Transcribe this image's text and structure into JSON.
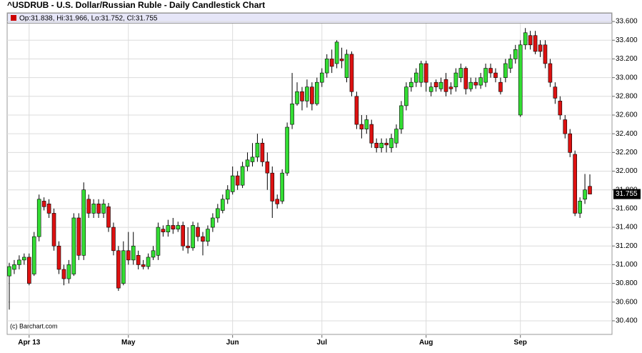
{
  "chart_data": {
    "type": "candlestick",
    "title": "^USDRUB - U.S. Dollar/Russian Ruble - Daily Candlestick Chart",
    "legend_text": "Op:31.838, Hi:31.966, Lo:31.752, Cl:31.755",
    "last_price_label": "31.755",
    "source": "(c) Barchart.com",
    "up_color": "#33dd33",
    "down_color": "#dd1111",
    "legend_color": "#cc0000",
    "grid": true,
    "categories": [
      null,
      null,
      null,
      null,
      "Apr 13",
      null,
      null,
      null,
      null,
      null,
      null,
      null,
      null,
      null,
      null,
      null,
      null,
      null,
      null,
      null,
      null,
      null,
      null,
      null,
      "May",
      null,
      null,
      null,
      null,
      null,
      null,
      null,
      null,
      null,
      null,
      null,
      null,
      null,
      null,
      null,
      null,
      null,
      null,
      null,
      null,
      "Jun",
      null,
      null,
      null,
      null,
      null,
      null,
      null,
      null,
      null,
      null,
      null,
      null,
      null,
      null,
      null,
      null,
      null,
      "Jul",
      null,
      null,
      null,
      null,
      null,
      null,
      null,
      null,
      null,
      null,
      null,
      null,
      null,
      null,
      null,
      null,
      null,
      null,
      null,
      null,
      "Aug",
      null,
      null,
      null,
      null,
      null,
      null,
      null,
      null,
      null,
      null,
      null,
      null,
      null,
      null,
      null,
      null,
      null,
      null,
      "Sep",
      null,
      null,
      null,
      null,
      null,
      null,
      null,
      null,
      null,
      null,
      null,
      null,
      null,
      null
    ],
    "open": [
      30.88,
      30.95,
      31.0,
      31.05,
      31.08,
      30.9,
      31.3,
      31.68,
      31.65,
      31.55,
      31.2,
      30.95,
      30.85,
      30.9,
      31.5,
      31.1,
      31.7,
      31.55,
      31.65,
      31.55,
      31.62,
      31.4,
      31.15,
      30.8,
      31.15,
      31.05,
      31.1,
      31.0,
      30.98,
      31.08,
      31.1,
      31.38,
      31.35,
      31.42,
      31.38,
      31.42,
      31.2,
      31.18,
      31.4,
      31.3,
      31.25,
      31.4,
      31.5,
      31.58,
      31.7,
      31.78,
      31.95,
      31.85,
      32.05,
      32.1,
      32.15,
      32.3,
      32.1,
      31.98,
      31.7,
      31.68,
      31.98,
      32.5,
      32.72,
      32.85,
      32.75,
      32.9,
      32.72,
      32.95,
      33.05,
      33.2,
      33.15,
      33.2,
      33.0,
      33.25,
      32.8,
      32.5,
      32.45,
      32.5,
      32.3,
      32.25,
      32.3,
      32.25,
      32.3,
      32.45,
      32.7,
      32.9,
      32.95,
      32.95,
      33.15,
      32.85,
      32.95,
      32.88,
      32.98,
      32.9,
      32.9,
      33.0,
      33.1,
      32.88,
      32.95,
      32.92,
      32.95,
      33.1,
      33.05,
      32.95,
      33.0,
      33.1,
      33.2,
      32.6,
      33.35,
      33.45,
      33.45,
      33.35,
      33.35,
      33.15,
      32.9,
      32.75,
      32.55,
      32.4,
      32.18,
      31.55,
      31.7,
      31.838
    ],
    "high": [
      31.02,
      31.05,
      31.1,
      31.12,
      31.12,
      31.35,
      31.75,
      31.72,
      31.7,
      31.6,
      31.25,
      31.0,
      31.05,
      31.55,
      31.55,
      31.88,
      31.75,
      31.7,
      31.7,
      31.7,
      31.66,
      31.45,
      31.2,
      31.25,
      31.35,
      31.35,
      31.15,
      31.05,
      31.12,
      31.2,
      31.45,
      31.42,
      31.48,
      31.5,
      31.46,
      31.46,
      31.4,
      31.46,
      31.45,
      31.35,
      31.42,
      31.55,
      31.65,
      31.75,
      31.85,
      32.05,
      32.0,
      32.1,
      32.2,
      32.3,
      32.4,
      32.35,
      32.2,
      32.05,
      31.75,
      32.02,
      32.52,
      33.05,
      32.95,
      32.9,
      32.98,
      32.95,
      33.0,
      33.1,
      33.25,
      33.3,
      33.4,
      33.32,
      33.3,
      33.28,
      32.85,
      32.6,
      32.6,
      32.55,
      32.35,
      32.35,
      32.35,
      32.4,
      32.5,
      32.75,
      32.95,
      33.0,
      33.1,
      33.18,
      33.18,
      32.95,
      32.98,
      33.0,
      33.05,
      32.95,
      33.1,
      33.15,
      33.12,
      33.0,
      33.0,
      33.05,
      33.15,
      33.15,
      33.1,
      33.0,
      33.2,
      33.25,
      33.35,
      33.4,
      33.53,
      33.5,
      33.5,
      33.4,
      33.4,
      33.2,
      32.95,
      32.8,
      32.6,
      32.45,
      32.22,
      31.72,
      31.97,
      31.966
    ],
    "low": [
      30.52,
      30.9,
      30.95,
      31.0,
      30.78,
      30.88,
      31.25,
      31.58,
      31.5,
      31.15,
      30.9,
      30.78,
      30.8,
      30.88,
      31.05,
      31.05,
      31.5,
      31.5,
      31.5,
      31.5,
      31.35,
      31.1,
      30.72,
      30.78,
      31.0,
      31.0,
      30.95,
      30.95,
      30.95,
      31.05,
      31.05,
      31.3,
      31.3,
      31.33,
      31.35,
      31.15,
      31.12,
      31.15,
      31.25,
      31.1,
      31.2,
      31.35,
      31.45,
      31.55,
      31.65,
      31.75,
      31.8,
      31.82,
      32.0,
      32.05,
      32.1,
      32.05,
      31.8,
      31.5,
      31.6,
      31.65,
      31.95,
      32.45,
      32.7,
      32.65,
      32.68,
      32.65,
      32.7,
      32.9,
      33.0,
      33.05,
      33.1,
      33.1,
      32.95,
      32.8,
      32.45,
      32.35,
      32.4,
      32.25,
      32.2,
      32.2,
      32.2,
      32.2,
      32.25,
      32.4,
      32.65,
      32.85,
      32.9,
      32.9,
      32.85,
      32.8,
      32.85,
      32.85,
      32.8,
      32.82,
      32.85,
      32.95,
      32.82,
      32.85,
      32.88,
      32.88,
      32.9,
      33.0,
      32.95,
      32.82,
      32.95,
      33.05,
      33.15,
      32.58,
      33.3,
      33.3,
      33.25,
      33.22,
      33.1,
      32.9,
      32.72,
      32.55,
      32.35,
      32.15,
      31.52,
      31.5,
      31.65,
      31.752
    ],
    "close": [
      30.98,
      31.0,
      31.05,
      31.08,
      30.8,
      31.3,
      31.7,
      31.62,
      31.55,
      31.2,
      30.95,
      30.85,
      31.0,
      31.5,
      31.1,
      31.8,
      31.55,
      31.65,
      31.55,
      31.65,
      31.4,
      31.15,
      30.75,
      31.15,
      31.05,
      31.2,
      31.0,
      30.98,
      31.08,
      31.15,
      31.4,
      31.35,
      31.42,
      31.38,
      31.42,
      31.2,
      31.18,
      31.42,
      31.3,
      31.25,
      31.38,
      31.5,
      31.6,
      31.7,
      31.8,
      31.95,
      31.85,
      32.05,
      32.12,
      32.15,
      32.3,
      32.1,
      31.98,
      31.68,
      31.65,
      31.98,
      32.47,
      32.72,
      32.85,
      32.75,
      32.9,
      32.72,
      32.95,
      33.05,
      33.2,
      33.12,
      33.38,
      33.18,
      33.25,
      32.85,
      32.5,
      32.45,
      32.55,
      32.3,
      32.25,
      32.3,
      32.28,
      32.35,
      32.45,
      32.7,
      32.9,
      32.95,
      33.05,
      33.15,
      32.95,
      32.9,
      32.9,
      32.95,
      32.85,
      32.88,
      33.05,
      33.1,
      32.88,
      32.95,
      32.92,
      33.0,
      33.1,
      33.05,
      33.0,
      32.85,
      33.15,
      33.2,
      33.3,
      33.35,
      33.48,
      33.35,
      33.28,
      33.28,
      33.15,
      32.95,
      32.78,
      32.6,
      32.4,
      32.2,
      31.55,
      31.68,
      31.8,
      31.755
    ],
    "ylim": [
      30.25,
      33.7
    ],
    "yticks": [
      {
        "value": 30.4,
        "label": "30.400"
      },
      {
        "value": 30.6,
        "label": "30.600"
      },
      {
        "value": 30.8,
        "label": "30.800"
      },
      {
        "value": 31.0,
        "label": "31.000"
      },
      {
        "value": 31.2,
        "label": "31.200"
      },
      {
        "value": 31.4,
        "label": "31.400"
      },
      {
        "value": 31.6,
        "label": "31.600"
      },
      {
        "value": 31.8,
        "label": "31.800"
      },
      {
        "value": 32.0,
        "label": "32.000"
      },
      {
        "value": 32.2,
        "label": "32.200"
      },
      {
        "value": 32.4,
        "label": "32.400"
      },
      {
        "value": 32.6,
        "label": "32.600"
      },
      {
        "value": 32.8,
        "label": "32.800"
      },
      {
        "value": 33.0,
        "label": "33.000"
      },
      {
        "value": 33.2,
        "label": "33.200"
      },
      {
        "value": 33.4,
        "label": "33.400"
      },
      {
        "value": 33.6,
        "label": "33.600"
      }
    ]
  }
}
